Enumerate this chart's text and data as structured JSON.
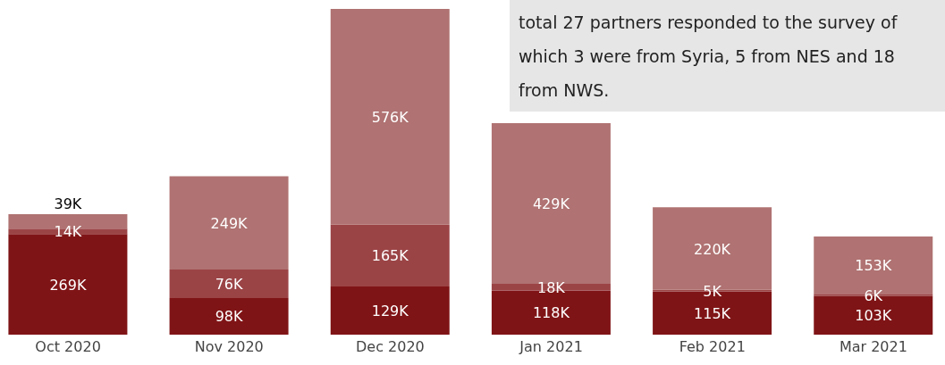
{
  "chart_data": {
    "type": "bar",
    "stacked": true,
    "categories": [
      "Oct 2020",
      "Nov 2020",
      "Dec 2020",
      "Jan 2021",
      "Feb 2021",
      "Mar 2021"
    ],
    "series": [
      {
        "color": "#7f1416",
        "values": [
          269,
          98,
          129,
          118,
          115,
          103
        ],
        "value_labels": [
          "269K",
          "98K",
          "129K",
          "118K",
          "115K",
          "103K"
        ]
      },
      {
        "color": "#9b4446",
        "values": [
          14,
          76,
          165,
          18,
          5,
          6
        ],
        "value_labels": [
          "14K",
          "76K",
          "165K",
          "18K",
          "5K",
          "6K"
        ]
      },
      {
        "color": "#b07272",
        "values": [
          39,
          249,
          576,
          429,
          220,
          153
        ],
        "value_labels": [
          "39K",
          "249K",
          "576K",
          "429K",
          "220K",
          "153K"
        ]
      }
    ],
    "annotations": [
      "total 27 partners responded to the survey of which 3 were from Syria, 5 from NES and 18 from NWS."
    ],
    "data_labels": true
  }
}
